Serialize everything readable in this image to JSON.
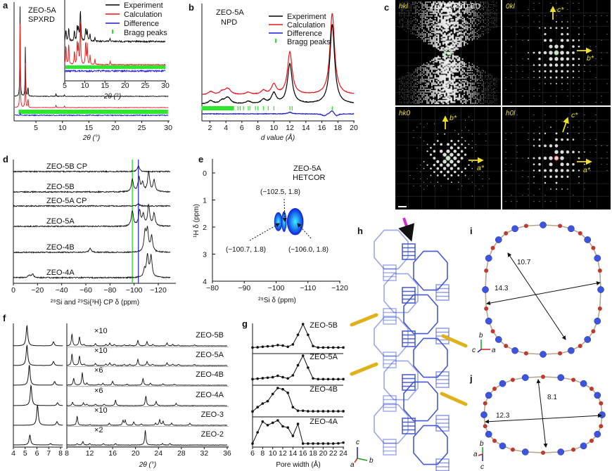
{
  "colors": {
    "experiment": "#000000",
    "calculation": "#e8171b",
    "difference": "#1a1ad6",
    "bragg": "#2ee62e",
    "green_line": "#2fd12f",
    "blue_line": "#3232e0",
    "structure": "#3a4fd0",
    "arrow_gold": "#e0b21a",
    "arrow_magenta": "#d22bd2",
    "atom_blue": "#3b55e0",
    "atom_red": "#c0392b",
    "ed_label": "#f0e020"
  },
  "legend": [
    "Experiment",
    "Calculation",
    "Difference",
    "Bragg peaks"
  ],
  "chart_data": [
    {
      "panel": "a",
      "type": "line",
      "title_lines": [
        "ZEO-5A",
        "SPXRD"
      ],
      "xlabel": "2θ (°)",
      "xlim": [
        1,
        30
      ],
      "xticks": [
        "5",
        "10",
        "15",
        "20",
        "25",
        "30"
      ],
      "series": [
        {
          "name": "Experiment",
          "peaks": [
            [
              2.0,
              1.0
            ],
            [
              3.0,
              0.55
            ],
            [
              3.5,
              0.12
            ],
            [
              8.8,
              0.03
            ],
            [
              10.4,
              0.02
            ]
          ]
        },
        {
          "name": "Calculation",
          "peaks": [
            [
              2.0,
              0.93
            ],
            [
              3.0,
              0.5
            ],
            [
              3.5,
              0.11
            ],
            [
              8.8,
              0.03
            ],
            [
              10.4,
              0.02
            ]
          ]
        },
        {
          "name": "Difference",
          "peaks": [
            [
              2.0,
              0.05
            ]
          ]
        }
      ],
      "bragg_range": [
        1.8,
        30
      ],
      "inset": {
        "xlabel": "2θ (°)",
        "xlim": [
          5,
          30
        ],
        "xticks": [
          "5",
          "10",
          "15",
          "20",
          "25",
          "30"
        ],
        "series": [
          {
            "name": "Experiment",
            "peaks": [
              [
                5.3,
                0.35
              ],
              [
                6.0,
                0.4
              ],
              [
                7.4,
                0.3
              ],
              [
                8.1,
                0.45
              ],
              [
                8.4,
                0.35
              ],
              [
                8.9,
                1.0
              ],
              [
                10.2,
                0.4
              ],
              [
                10.6,
                0.35
              ],
              [
                11.3,
                0.2
              ],
              [
                12.5,
                0.12
              ],
              [
                16.3,
                0.08
              ]
            ]
          },
          {
            "name": "Calculation",
            "peaks": [
              [
                5.3,
                0.45
              ],
              [
                6.0,
                0.5
              ],
              [
                7.4,
                0.3
              ],
              [
                8.1,
                0.55
              ],
              [
                8.4,
                0.4
              ],
              [
                8.9,
                1.0
              ],
              [
                10.2,
                0.55
              ],
              [
                10.6,
                0.45
              ],
              [
                11.3,
                0.2
              ],
              [
                12.5,
                0.12
              ],
              [
                16.3,
                0.08
              ]
            ]
          }
        ]
      }
    },
    {
      "panel": "b",
      "type": "line",
      "title_lines": [
        "ZEO-5A",
        "NPD"
      ],
      "xlabel": "d value (Å)",
      "xlim": [
        1,
        20
      ],
      "xticks": [
        "2",
        "4",
        "6",
        "8",
        "10",
        "12",
        "14",
        "16",
        "18",
        "20"
      ],
      "series": [
        {
          "name": "Experiment",
          "peaks": [
            [
              2.1,
              0.04
            ],
            [
              3.5,
              0.04
            ],
            [
              4.1,
              0.05
            ],
            [
              4.4,
              0.04
            ],
            [
              6.8,
              0.03
            ],
            [
              8.7,
              0.05
            ],
            [
              10.0,
              0.13
            ],
            [
              12.0,
              0.5
            ],
            [
              17.3,
              1.0
            ]
          ]
        },
        {
          "name": "Calculation",
          "peaks": [
            [
              2.1,
              0.04
            ],
            [
              3.5,
              0.04
            ],
            [
              4.1,
              0.05
            ],
            [
              4.4,
              0.04
            ],
            [
              6.8,
              0.03
            ],
            [
              8.7,
              0.05
            ],
            [
              10.0,
              0.13
            ],
            [
              12.0,
              0.55
            ],
            [
              17.3,
              1.05
            ]
          ]
        },
        {
          "name": "Difference",
          "peaks": [
            [
              12.0,
              0.04
            ],
            [
              16.3,
              -0.05
            ],
            [
              17.3,
              0.09
            ],
            [
              17.8,
              -0.06
            ]
          ]
        }
      ],
      "bragg_positions": [
        5.5,
        5.8,
        6.2,
        6.8,
        7.0,
        7.7,
        8.0,
        8.7,
        9.3,
        10.0,
        12.0,
        12.3,
        17.3
      ],
      "bragg_dense_range": [
        1,
        5
      ]
    },
    {
      "panel": "c",
      "type": "other",
      "title": "ZEO-5A 3D ED",
      "quadrants": [
        {
          "label": "hkl",
          "axes": []
        },
        {
          "label": "0kl",
          "axes": [
            "c*",
            "b*"
          ]
        },
        {
          "label": "hk0",
          "axes": [
            "b*",
            "a*"
          ]
        },
        {
          "label": "h0l",
          "axes": [
            "c*",
            "a*"
          ]
        }
      ]
    },
    {
      "panel": "d",
      "type": "line",
      "xlabel": "²⁹Si and ²⁹Si{¹H} CP δ (ppm)",
      "xlim": [
        0,
        -130
      ],
      "xticks": [
        "0",
        "−20",
        "−40",
        "−60",
        "−80",
        "−100",
        "−120"
      ],
      "vlines": [
        {
          "ppm": -98.5,
          "color": "green"
        },
        {
          "ppm": -103.5,
          "color": "blue"
        }
      ],
      "series": [
        {
          "name": "ZEO-5B CP",
          "peaks": [
            [
              -103.5,
              0.27
            ]
          ]
        },
        {
          "name": "ZEO-5B",
          "peaks": [
            [
              -98.5,
              0.57
            ],
            [
              -104,
              0.67
            ],
            [
              -107,
              0.4
            ],
            [
              -112,
              0.93
            ],
            [
              -116.5,
              0.53
            ]
          ]
        },
        {
          "name": "ZEO-5A CP",
          "peaks": [
            [
              -103.5,
              0.1
            ]
          ]
        },
        {
          "name": "ZEO-5A",
          "peaks": [
            [
              -98.5,
              0.73
            ],
            [
              -104.5,
              0.73
            ],
            [
              -107.5,
              0.53
            ],
            [
              -112,
              1.0
            ],
            [
              -116.5,
              0.6
            ]
          ]
        },
        {
          "name": "ZEO-4B",
          "peaks": [
            [
              -63.5,
              0.2
            ],
            [
              -109,
              0.93
            ],
            [
              -111,
              1.0
            ],
            [
              -114.5,
              0.73
            ]
          ]
        },
        {
          "name": "ZEO-4A",
          "peaks": [
            [
              -13,
              0.13
            ],
            [
              -16,
              0.17
            ],
            [
              -108.5,
              0.33
            ],
            [
              -111,
              1.0
            ],
            [
              -114,
              1.0
            ]
          ]
        }
      ]
    },
    {
      "panel": "e",
      "type": "heatmap",
      "title_lines": [
        "ZEO-5A",
        "HETCOR"
      ],
      "xlabel": "²⁹Si δ (ppm)",
      "ylabel": "¹H δ (ppm)",
      "xlim": [
        -80,
        -120
      ],
      "ylim": [
        -0.5,
        4
      ],
      "xticks": [
        "−80",
        "−90",
        "−100",
        "−110",
        "−120"
      ],
      "yticks": [
        "0",
        "1",
        "2",
        "3",
        "4"
      ],
      "peaks": [
        {
          "si": -100.7,
          "h": 1.8,
          "label": "(−100.7, 1.8)"
        },
        {
          "si": -102.5,
          "h": 1.8,
          "label": "(−102.5, 1.8)"
        },
        {
          "si": -106.0,
          "h": 1.8,
          "label": "(−106.0, 1.8)"
        }
      ]
    },
    {
      "panel": "f",
      "type": "line",
      "xlabel": "2θ (°)",
      "left_xlim": [
        4,
        8.2
      ],
      "right_xlim": [
        8,
        36
      ],
      "left_xticks": [
        "4",
        "5",
        "6",
        "7",
        "8"
      ],
      "right_xticks": [
        "8",
        "12",
        "16",
        "20",
        "24",
        "28",
        "32",
        "36"
      ],
      "series": [
        {
          "name": "ZEO-5B",
          "scale": "×10",
          "left": [
            [
              5.15,
              1.0
            ],
            [
              7.4,
              0.2
            ]
          ],
          "right": [
            [
              8.9,
              17
            ],
            [
              10.2,
              13
            ],
            [
              11,
              2
            ],
            [
              13,
              3
            ],
            [
              14.8,
              2
            ],
            [
              15.5,
              4
            ],
            [
              16.3,
              2
            ],
            [
              18,
              1.5
            ],
            [
              19,
              1.5
            ],
            [
              20.4,
              8
            ],
            [
              22,
              6
            ],
            [
              23,
              2
            ],
            [
              25.5,
              4
            ],
            [
              26.5,
              2
            ],
            [
              27.5,
              1.5
            ],
            [
              30.3,
              1.5
            ]
          ]
        },
        {
          "name": "ZEO-5A",
          "scale": "×10",
          "left": [
            [
              5.15,
              1.0
            ],
            [
              7.4,
              0.2
            ]
          ],
          "right": [
            [
              8.9,
              17
            ],
            [
              10.2,
              14
            ],
            [
              11,
              2
            ],
            [
              13,
              3
            ],
            [
              14.8,
              2
            ],
            [
              15.5,
              4
            ],
            [
              16.3,
              2
            ],
            [
              18,
              1.5
            ],
            [
              19,
              1.5
            ],
            [
              20.4,
              9
            ],
            [
              22,
              6
            ],
            [
              23,
              2
            ],
            [
              25.5,
              4
            ],
            [
              26.5,
              2
            ],
            [
              27.5,
              1.5
            ],
            [
              30.3,
              1.5
            ]
          ]
        },
        {
          "name": "ZEO-4B",
          "scale": "×6",
          "left": [
            [
              5.35,
              1.0
            ],
            [
              7.5,
              0.18
            ]
          ],
          "right": [
            [
              9.2,
              10
            ],
            [
              10.7,
              18
            ],
            [
              11.5,
              3
            ],
            [
              13.5,
              1.5
            ],
            [
              14.3,
              3
            ],
            [
              16,
              6
            ],
            [
              18.5,
              1.5
            ],
            [
              21.3,
              10
            ],
            [
              22.6,
              3
            ],
            [
              24.8,
              2
            ],
            [
              26.8,
              1.5
            ]
          ]
        },
        {
          "name": "ZEO-4A",
          "scale": "×6",
          "left": [
            [
              5.5,
              1.0
            ],
            [
              7.75,
              0.14
            ]
          ],
          "right": [
            [
              9.0,
              5
            ],
            [
              10.9,
              4
            ],
            [
              11.5,
              2
            ],
            [
              13,
              2
            ],
            [
              14.5,
              2
            ],
            [
              16.5,
              8
            ],
            [
              21.8,
              14
            ],
            [
              23.6,
              6
            ],
            [
              27.1,
              3
            ]
          ]
        },
        {
          "name": "ZEO-3",
          "scale": "×10",
          "left": [
            [
              6.05,
              1.0
            ],
            [
              7.7,
              0.18
            ]
          ],
          "right": [
            [
              9.8,
              13
            ],
            [
              12,
              1
            ],
            [
              15.4,
              3
            ],
            [
              17.8,
              7
            ],
            [
              18.2,
              7
            ],
            [
              19.7,
              5
            ],
            [
              21,
              2
            ],
            [
              23.5,
              3
            ],
            [
              24.2,
              8
            ],
            [
              24.8,
              6
            ],
            [
              26.3,
              3
            ],
            [
              29.5,
              3
            ]
          ]
        },
        {
          "name": "ZEO-2",
          "scale": "×2",
          "left": [
            [
              5.4,
              0.5
            ],
            [
              7.15,
              0.07
            ]
          ],
          "right": [
            [
              9.8,
              2
            ],
            [
              10.8,
              5
            ],
            [
              12,
              2
            ],
            [
              14.4,
              2
            ],
            [
              16.5,
              2
            ],
            [
              21.7,
              21
            ],
            [
              24.7,
              2
            ],
            [
              26,
              2
            ]
          ]
        }
      ]
    },
    {
      "panel": "g",
      "type": "line",
      "xlabel": "Pore width (Å)",
      "xlim": [
        6,
        24
      ],
      "xticks": [
        "6",
        "8",
        "10",
        "12",
        "14",
        "16",
        "18",
        "20",
        "22",
        "24"
      ],
      "x": [
        6,
        7,
        8,
        9,
        10,
        11,
        12,
        13,
        14,
        15,
        16,
        17,
        18,
        19,
        20,
        21,
        22,
        23,
        24
      ],
      "series": [
        {
          "name": "ZEO-5B",
          "values": [
            0.02,
            0.03,
            0.05,
            0.07,
            0.08,
            0.12,
            0.1,
            0.05,
            0.15,
            0.55,
            1.0,
            0.55,
            0.08,
            0.02,
            0.02,
            0.02,
            0.02,
            0.02,
            0.02
          ]
        },
        {
          "name": "ZEO-5A",
          "values": [
            0.02,
            0.04,
            0.06,
            0.08,
            0.1,
            0.16,
            0.1,
            0.05,
            0.18,
            0.6,
            1.0,
            0.5,
            0.05,
            0.02,
            0.02,
            0.02,
            0.02,
            0.02,
            0.02
          ]
        },
        {
          "name": "ZEO-4B",
          "values": [
            0.02,
            0.2,
            0.35,
            0.45,
            0.75,
            1.0,
            0.95,
            0.8,
            0.2,
            0.05,
            0.05,
            0.03,
            0.03,
            0.03,
            0.03,
            0.03,
            0.03,
            0.03,
            0.03
          ]
        },
        {
          "name": "ZEO-4A",
          "values": [
            0.03,
            0.5,
            0.95,
            0.8,
            0.9,
            1.0,
            0.75,
            0.7,
            0.35,
            0.85,
            0.03,
            0.03,
            0.03,
            0.03,
            0.03,
            0.03,
            0.03,
            0.04,
            0.07
          ]
        }
      ]
    }
  ],
  "panel_labels": {
    "a": "a",
    "b": "b",
    "c": "c",
    "d": "d",
    "e": "e",
    "f": "f",
    "g": "g",
    "h": "h",
    "i": "i",
    "j": "j"
  },
  "structure": {
    "axes_h": [
      "c",
      "a",
      "b"
    ],
    "axes_i": [
      "b",
      "c",
      "a"
    ],
    "axes_j": [
      "b",
      "a",
      "c"
    ],
    "ring_i": {
      "dims": [
        "10.7",
        "14.3"
      ],
      "atoms": 32
    },
    "ring_j": {
      "dims": [
        "8.1",
        "12.3"
      ],
      "atoms": 28
    }
  }
}
